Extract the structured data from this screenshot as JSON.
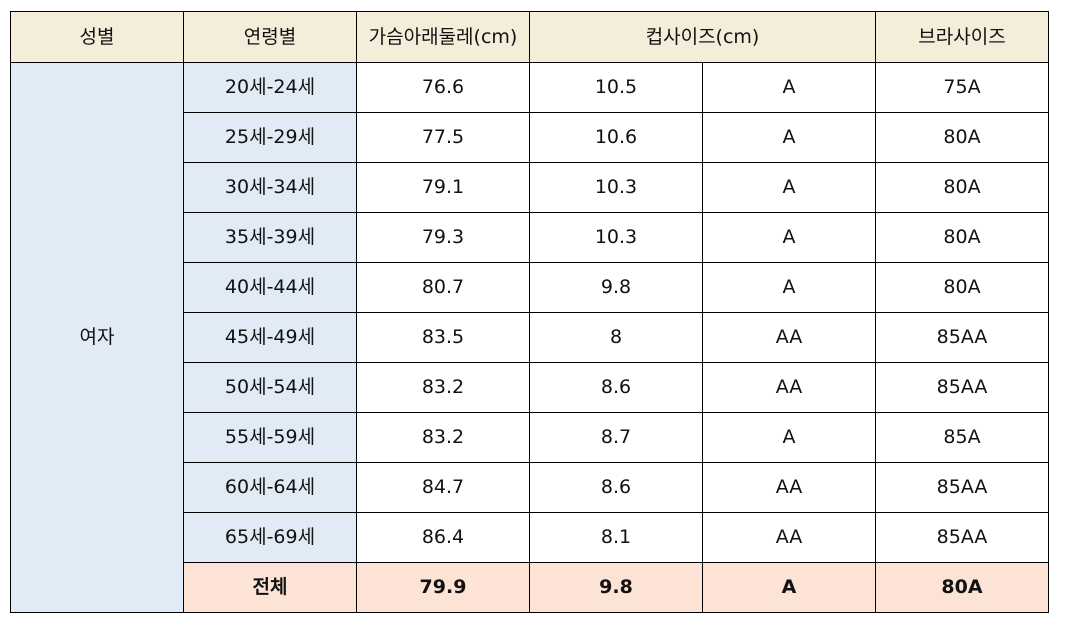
{
  "header": {
    "gender": "성별",
    "age_group": "연령별",
    "underbust": "가슴아래둘레(cm)",
    "cup_size": "컵사이즈(cm)",
    "bra_size": "브라사이즈"
  },
  "gender_label": "여자",
  "rows": [
    {
      "age": "20세-24세",
      "underbust": "76.6",
      "cup_cm": "10.5",
      "cup": "A",
      "bra": "75A"
    },
    {
      "age": "25세-29세",
      "underbust": "77.5",
      "cup_cm": "10.6",
      "cup": "A",
      "bra": "80A"
    },
    {
      "age": "30세-34세",
      "underbust": "79.1",
      "cup_cm": "10.3",
      "cup": "A",
      "bra": "80A"
    },
    {
      "age": "35세-39세",
      "underbust": "79.3",
      "cup_cm": "10.3",
      "cup": "A",
      "bra": "80A"
    },
    {
      "age": "40세-44세",
      "underbust": "80.7",
      "cup_cm": "9.8",
      "cup": "A",
      "bra": "80A"
    },
    {
      "age": "45세-49세",
      "underbust": "83.5",
      "cup_cm": "8",
      "cup": "AA",
      "bra": "85AA"
    },
    {
      "age": "50세-54세",
      "underbust": "83.2",
      "cup_cm": "8.6",
      "cup": "AA",
      "bra": "85AA"
    },
    {
      "age": "55세-59세",
      "underbust": "83.2",
      "cup_cm": "8.7",
      "cup": "A",
      "bra": "85A"
    },
    {
      "age": "60세-64세",
      "underbust": "84.7",
      "cup_cm": "8.6",
      "cup": "AA",
      "bra": "85AA"
    },
    {
      "age": "65세-69세",
      "underbust": "86.4",
      "cup_cm": "8.1",
      "cup": "AA",
      "bra": "85AA"
    }
  ],
  "total": {
    "age": "전체",
    "underbust": "79.9",
    "cup_cm": "9.8",
    "cup": "A",
    "bra": "80A"
  },
  "colors": {
    "header_bg": "#f4edd9",
    "label_bg": "#e1ebf6",
    "total_bg": "#fde3d6"
  }
}
